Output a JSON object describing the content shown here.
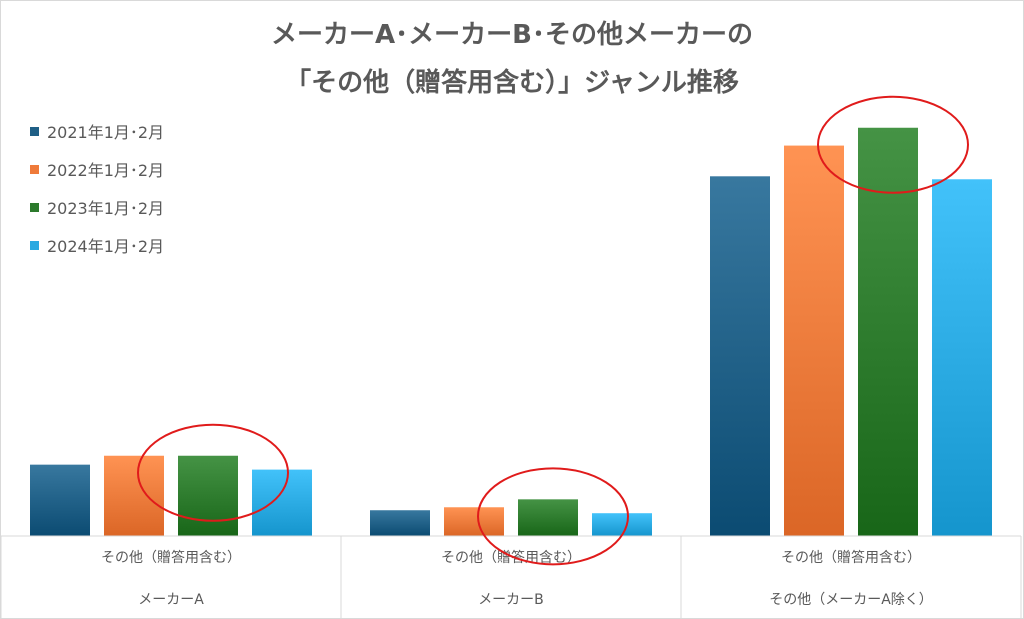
{
  "title": {
    "line1": "メーカーA･メーカーB･その他メーカーの",
    "line2": "「その他（贈答用含む）」ジャンル推移"
  },
  "chart_data": {
    "type": "bar",
    "groups": [
      {
        "category": "その他（贈答用含む）",
        "group": "メーカーA"
      },
      {
        "category": "その他（贈答用含む）",
        "group": "メーカーB"
      },
      {
        "category": "その他（贈答用含む）",
        "group": "その他（メーカーA除く）"
      }
    ],
    "series": [
      {
        "name": "2021年1月･2月",
        "color": "#1f5f86",
        "values": [
          72,
          26,
          363
        ]
      },
      {
        "name": "2022年1月･2月",
        "color": "#ef7a3a",
        "values": [
          81,
          29,
          394
        ]
      },
      {
        "name": "2023年1月･2月",
        "color": "#2c7a2c",
        "values": [
          81,
          37,
          412
        ]
      },
      {
        "name": "2024年1月･2月",
        "color": "#29a9e1",
        "values": [
          67,
          23,
          360
        ]
      }
    ],
    "ylim": [
      0,
      440
    ],
    "grid": false,
    "legend_position": "top-left",
    "highlight": "red ellipse around the 2023 bar in each group"
  }
}
